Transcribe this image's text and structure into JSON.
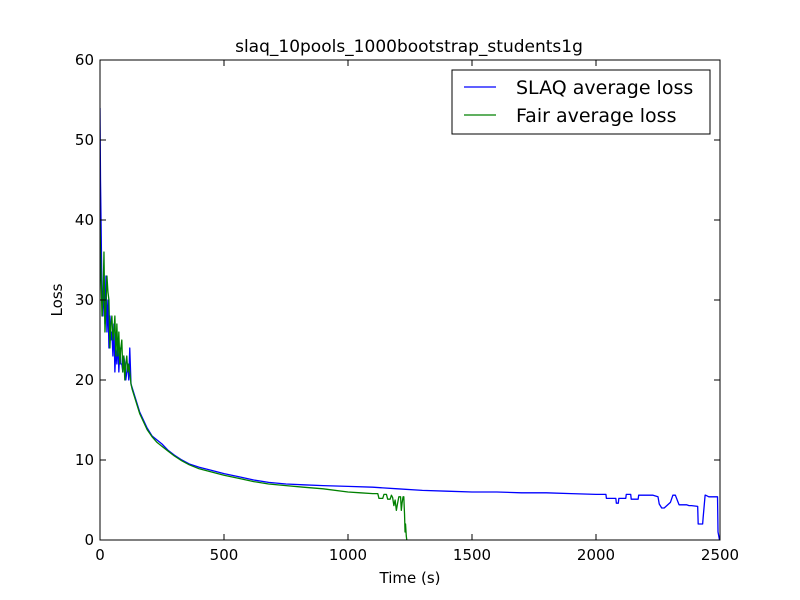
{
  "chart_data": {
    "type": "line",
    "title": "slaq_10pools_1000bootstrap_students1g",
    "xlabel": "Time (s)",
    "ylabel": "Loss",
    "xlim": [
      0,
      2500
    ],
    "ylim": [
      0,
      60
    ],
    "xticks": [
      0,
      500,
      1000,
      1500,
      2000,
      2500
    ],
    "yticks": [
      0,
      10,
      20,
      30,
      40,
      50,
      60
    ],
    "grid": false,
    "legend_position": "top-right",
    "series": [
      {
        "name": "SLAQ average loss",
        "color": "#0000ff",
        "x": [
          0,
          2,
          5,
          8,
          12,
          16,
          20,
          24,
          28,
          32,
          36,
          40,
          44,
          48,
          52,
          56,
          60,
          64,
          68,
          72,
          76,
          80,
          84,
          88,
          92,
          96,
          100,
          104,
          108,
          112,
          116,
          120,
          125,
          130,
          140,
          150,
          160,
          175,
          190,
          210,
          230,
          250,
          275,
          300,
          330,
          360,
          400,
          450,
          500,
          560,
          620,
          680,
          750,
          820,
          900,
          1000,
          1100,
          1200,
          1300,
          1400,
          1500,
          1600,
          1700,
          1800,
          1900,
          2000,
          2040,
          2042,
          2080,
          2082,
          2090,
          2092,
          2120,
          2122,
          2140,
          2142,
          2170,
          2172,
          2200,
          2230,
          2250,
          2255,
          2265,
          2275,
          2300,
          2310,
          2320,
          2330,
          2335,
          2345,
          2355,
          2365,
          2375,
          2380,
          2385,
          2410,
          2412,
          2430,
          2432,
          2440,
          2442,
          2455,
          2460,
          2490,
          2492,
          2498
        ],
        "values": [
          54,
          45,
          38,
          30,
          28,
          32,
          27,
          33,
          26,
          30,
          24,
          28,
          25,
          26,
          23,
          27,
          21,
          24,
          22,
          25,
          21,
          24,
          22,
          22,
          21,
          23,
          22,
          20,
          21,
          22,
          20,
          24,
          19.5,
          19,
          18,
          17,
          16,
          15,
          14,
          13,
          12.5,
          12,
          11.2,
          10.6,
          10,
          9.5,
          9.1,
          8.7,
          8.3,
          7.9,
          7.5,
          7.2,
          7.0,
          6.9,
          6.8,
          6.7,
          6.6,
          6.4,
          6.2,
          6.1,
          6.0,
          6.0,
          5.9,
          5.9,
          5.8,
          5.7,
          5.7,
          5.2,
          5.2,
          4.6,
          4.6,
          5.2,
          5.2,
          5.7,
          5.7,
          5.1,
          5.1,
          5.6,
          5.6,
          5.6,
          5.4,
          4.5,
          4.0,
          4.0,
          4.7,
          5.6,
          5.6,
          4.8,
          4.4,
          4.4,
          4.4,
          4.4,
          4.3,
          4.3,
          4.3,
          4.2,
          2.0,
          2.0,
          2.8,
          5.6,
          5.6,
          5.4,
          5.4,
          5.4,
          1.0,
          0
        ]
      },
      {
        "name": "Fair average loss",
        "color": "#008000",
        "x": [
          0,
          2,
          5,
          8,
          12,
          16,
          20,
          24,
          28,
          32,
          36,
          40,
          44,
          48,
          52,
          56,
          60,
          64,
          68,
          72,
          76,
          80,
          84,
          88,
          92,
          96,
          100,
          104,
          108,
          112,
          116,
          120,
          125,
          130,
          140,
          150,
          160,
          175,
          190,
          210,
          230,
          250,
          275,
          300,
          330,
          360,
          400,
          450,
          500,
          560,
          620,
          680,
          750,
          820,
          900,
          1000,
          1050,
          1100,
          1120,
          1125,
          1140,
          1145,
          1155,
          1160,
          1170,
          1175,
          1180,
          1185,
          1190,
          1195,
          1200,
          1205,
          1212,
          1215,
          1218,
          1222,
          1225,
          1228,
          1230,
          1232,
          1235,
          1237
        ],
        "values": [
          40,
          36,
          32,
          28,
          30,
          36,
          26,
          29,
          33,
          31,
          30,
          24,
          27,
          28,
          25,
          26,
          28,
          23,
          27,
          23,
          26,
          22,
          24,
          25,
          21,
          23,
          20,
          22,
          23,
          21,
          22,
          21,
          19.5,
          18.8,
          17.8,
          16.8,
          15.8,
          14.8,
          13.8,
          12.9,
          12.2,
          11.7,
          11.1,
          10.5,
          9.9,
          9.4,
          8.9,
          8.5,
          8.1,
          7.7,
          7.3,
          7.0,
          6.8,
          6.6,
          6.4,
          6.0,
          5.9,
          5.8,
          5.8,
          5.2,
          5.2,
          5.7,
          5.7,
          5.1,
          5.1,
          5.6,
          5.3,
          4.3,
          5.0,
          3.7,
          4.6,
          5.4,
          5.4,
          3.7,
          4.6,
          5.4,
          5.4,
          3.2,
          1.0,
          2.0,
          0.5,
          0
        ]
      }
    ]
  }
}
